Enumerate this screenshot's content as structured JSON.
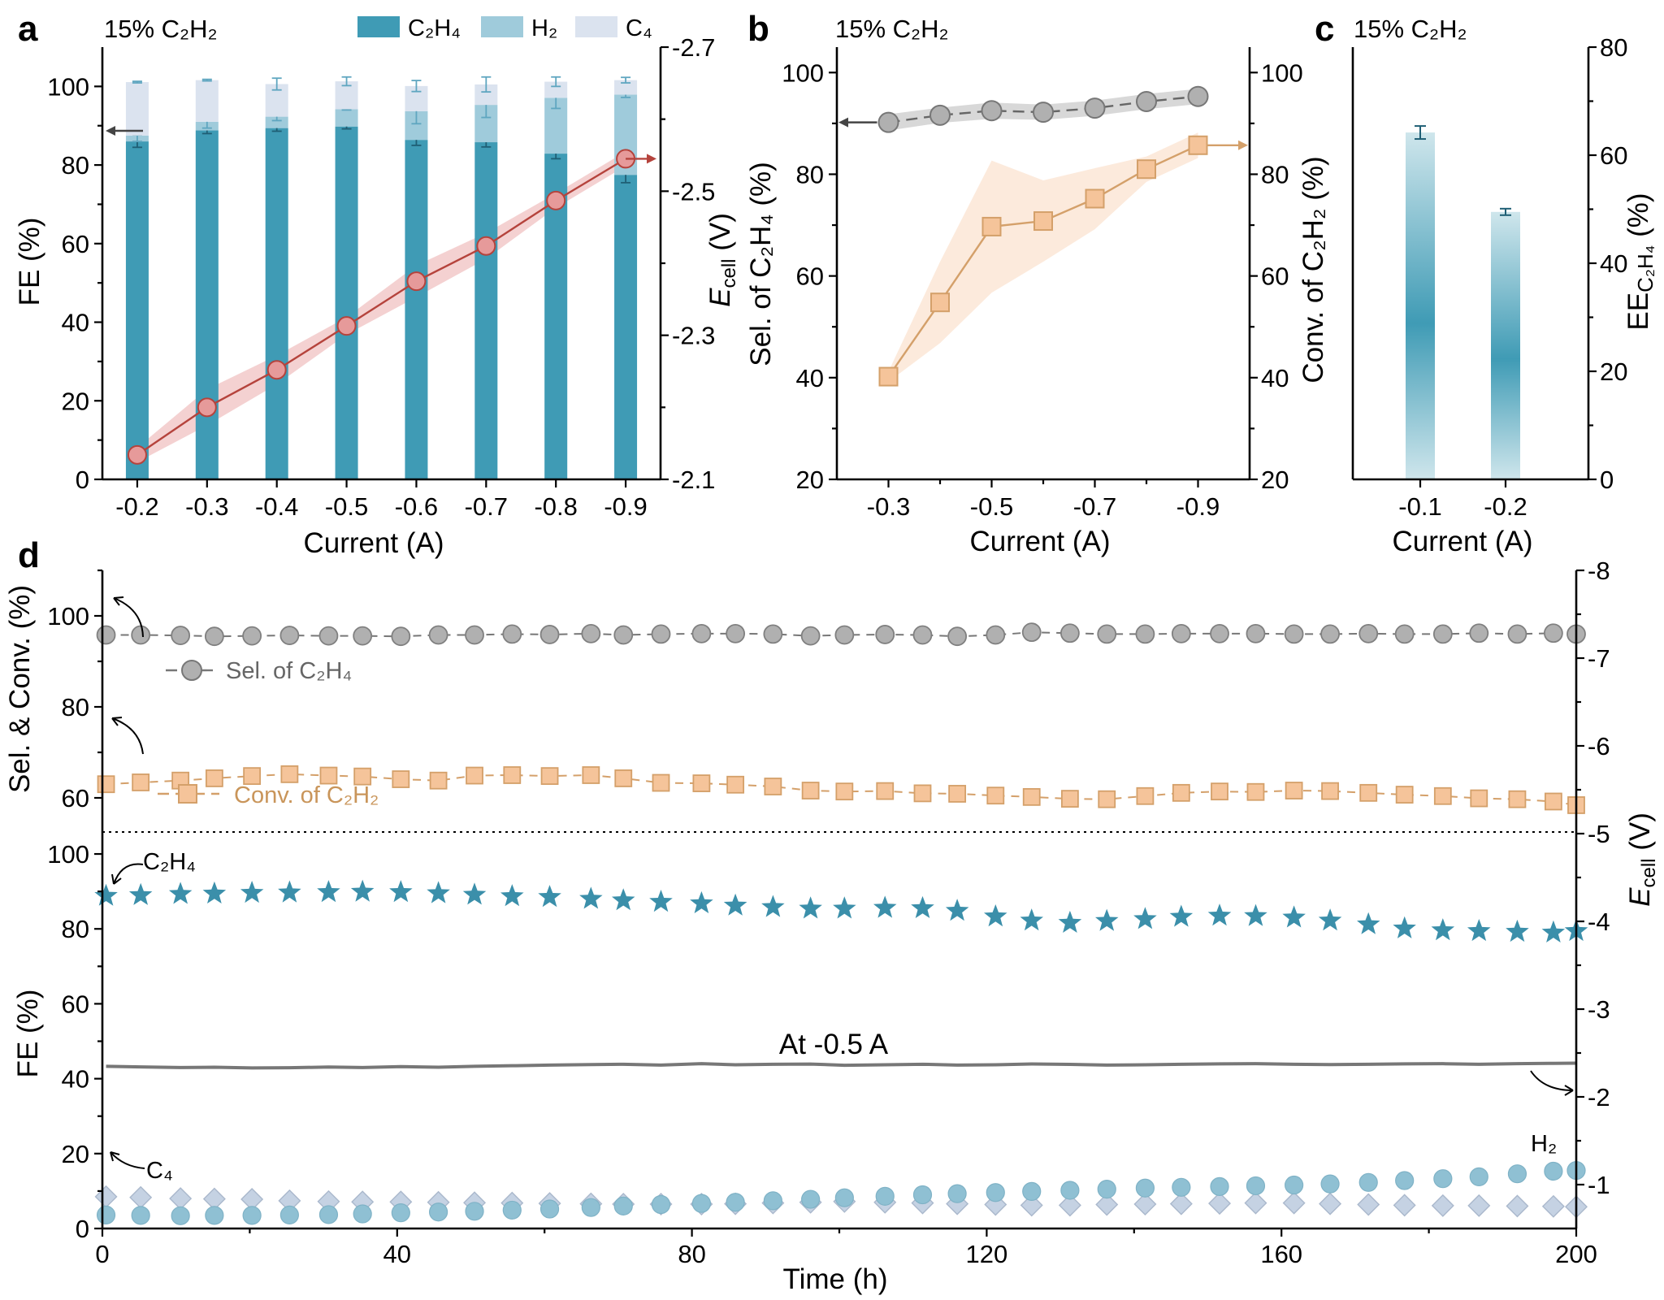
{
  "figure": {
    "panel_letters": [
      "a",
      "b",
      "c",
      "d"
    ],
    "condition_label": "15% C₂H₂"
  },
  "colors": {
    "c2h4": "#3f9bb5",
    "h2": "#9fcbdb",
    "c4": "#dbe3ef",
    "ecell_line": "#b5433c",
    "ecell_marker": "#e69a9a",
    "sel": "#b0b0b0",
    "conv": "#f5c49a",
    "conv_line": "#d4a06a",
    "ecell_trace": "#777777",
    "star": "#3b8faa",
    "h2_circle": "#8fc0d3",
    "c4_diamond": "#c5d2e3"
  },
  "chart_data": [
    {
      "id": "a",
      "type": "bar",
      "stacked": true,
      "header": "15% C₂H₂",
      "categories": [
        "-0.2",
        "-0.3",
        "-0.4",
        "-0.5",
        "-0.6",
        "-0.7",
        "-0.8",
        "-0.9"
      ],
      "xlabel": "Current (A)",
      "ylabel": "FE (%)",
      "y2label_main": "E",
      "y2label_sub": "cell",
      "y2label_unit": " (V)",
      "ylim": [
        0,
        110
      ],
      "yticks": [
        "0",
        "20",
        "40",
        "60",
        "80",
        "100"
      ],
      "y2lim": [
        -2.1,
        -2.7
      ],
      "y2ticks": [
        "-2.1",
        "-2.3",
        "-2.5",
        "-2.7"
      ],
      "legend": [
        "C₂H₄",
        "H₂",
        "C₄"
      ],
      "legend_position": "top",
      "series": [
        {
          "name": "C₂H₄",
          "values": [
            86,
            88.8,
            89.4,
            89.8,
            86.4,
            85.8,
            82.9,
            77.5
          ],
          "errors": [
            1.5,
            0.8,
            0.8,
            0.6,
            1.4,
            1.2,
            1.3,
            2.0
          ]
        },
        {
          "name": "H₂",
          "values": [
            1.5,
            2.2,
            2.9,
            4.4,
            7.3,
            9.5,
            14.2,
            20.4
          ],
          "errors": [
            1.5,
            1.6,
            1.0,
            0.2,
            3.2,
            3.2,
            2.7,
            0.7
          ]
        },
        {
          "name": "C₄",
          "values": [
            13.6,
            10.6,
            8.3,
            7.1,
            6.4,
            5.2,
            4.1,
            3.7
          ],
          "errors": [
            0.2,
            0.2,
            1.5,
            1.1,
            1.4,
            1.9,
            1.2,
            0.7
          ]
        }
      ],
      "ecell": [
        -2.134,
        -2.2,
        -2.252,
        -2.313,
        -2.375,
        -2.424,
        -2.487,
        -2.545
      ],
      "ecell_band": [
        0.01,
        0.025,
        0.02,
        0.012,
        0.022,
        0.018,
        0.01,
        0.01
      ],
      "grid": false
    },
    {
      "id": "b",
      "type": "line",
      "header": "15% C₂H₂",
      "x": [
        -0.3,
        -0.4,
        -0.5,
        -0.6,
        -0.7,
        -0.8,
        -0.9
      ],
      "xticks": [
        "-0.3",
        "-0.5",
        "-0.7",
        "-0.9"
      ],
      "xlabel": "Current (A)",
      "ylabel": "Sel. of C₂H₄ (%)",
      "y2label": "Conv. of C₂H₂ (%)",
      "ylim": [
        20,
        105
      ],
      "yticks": [
        "20",
        "40",
        "60",
        "80",
        "100"
      ],
      "y2ticks": [
        "20",
        "40",
        "60",
        "80",
        "100"
      ],
      "series": [
        {
          "name": "Sel. of C₂H₄",
          "axis": "left",
          "values": [
            90.2,
            91.6,
            92.5,
            92.2,
            93.0,
            94.3,
            95.3
          ],
          "band": [
            1.6,
            1.5,
            1.6,
            1.5,
            1.5,
            1.5,
            1.5
          ]
        },
        {
          "name": "Conv. of C₂H₂",
          "axis": "right",
          "values": [
            40.2,
            54.8,
            69.7,
            70.8,
            75.2,
            81.0,
            85.7
          ],
          "band": [
            1.0,
            8.0,
            13.0,
            8.0,
            6.0,
            2.5,
            2.5
          ]
        }
      ],
      "grid": false
    },
    {
      "id": "c",
      "type": "bar",
      "header": "15% C₂H₂",
      "categories": [
        "-0.1",
        "-0.2"
      ],
      "xlabel": "Current (A)",
      "ylabel_main": "EE",
      "ylabel_sub": "C₂H₄",
      "ylabel_unit": " (%)",
      "ylim": [
        0,
        80
      ],
      "yticks": [
        "0",
        "20",
        "40",
        "60",
        "80"
      ],
      "values": [
        64.2,
        49.5
      ],
      "errors": [
        1.2,
        0.6
      ],
      "grid": false
    },
    {
      "id": "d",
      "type": "scatter",
      "xlabel": "Time (h)",
      "xlim": [
        0,
        200
      ],
      "xticks": [
        "0",
        "40",
        "80",
        "120",
        "160",
        "200"
      ],
      "top_ylabel": "Sel. & Conv. (%)",
      "top_ylim": [
        52.5,
        110
      ],
      "top_yticks": [
        "60",
        "80",
        "100"
      ],
      "bottom_ylabel": "FE (%)",
      "bottom_ylim": [
        0,
        105
      ],
      "bottom_yticks": [
        "0",
        "20",
        "40",
        "60",
        "80",
        "100"
      ],
      "y2label_main": "E",
      "y2label_sub": "cell",
      "y2label_unit": " (V)",
      "y2lim": [
        -0.5,
        -8
      ],
      "y2ticks": [
        "-1",
        "-2",
        "-3",
        "-4",
        "-5",
        "-6",
        "-7",
        "-8"
      ],
      "x": [
        0.5,
        5.2,
        10.6,
        15.2,
        20.3,
        25.4,
        30.7,
        35.3,
        40.5,
        45.6,
        50.5,
        55.6,
        60.7,
        66.3,
        70.7,
        75.8,
        81.3,
        85.9,
        91.0,
        96.1,
        100.7,
        106.2,
        111.3,
        116.0,
        121.2,
        126.1,
        131.3,
        136.3,
        141.5,
        146.4,
        151.6,
        156.5,
        161.7,
        166.6,
        171.8,
        176.7,
        181.9,
        186.8,
        192.0,
        196.9,
        200.0
      ],
      "series": [
        {
          "name": "Sel. of C₂H₄",
          "panel": "top",
          "values": [
            95.8,
            95.8,
            95.7,
            95.5,
            95.6,
            95.7,
            95.6,
            95.6,
            95.5,
            95.8,
            95.8,
            96.0,
            95.9,
            96.1,
            95.8,
            96.0,
            96.1,
            96.1,
            96.0,
            95.6,
            95.8,
            95.9,
            95.8,
            95.5,
            95.8,
            96.4,
            96.2,
            96.0,
            96.0,
            96.1,
            96.1,
            96.1,
            96.0,
            96.0,
            96.1,
            96.0,
            96.0,
            96.2,
            96.0,
            96.2,
            96.0
          ]
        },
        {
          "name": "Conv. of C₂H₂",
          "panel": "top",
          "values": [
            63.0,
            63.4,
            63.8,
            64.3,
            64.8,
            65.2,
            64.9,
            64.7,
            64.1,
            63.8,
            64.9,
            65.0,
            64.8,
            65.0,
            64.3,
            63.3,
            63.2,
            62.9,
            62.5,
            61.6,
            61.4,
            61.5,
            61.0,
            60.9,
            60.5,
            60.2,
            59.8,
            59.7,
            60.4,
            61.1,
            61.4,
            61.3,
            61.6,
            61.5,
            61.1,
            60.7,
            60.4,
            59.9,
            59.7,
            59.2,
            58.4
          ]
        },
        {
          "name": "C₂H₄",
          "panel": "bottom",
          "values": [
            88.8,
            89.0,
            89.3,
            89.4,
            89.6,
            89.7,
            89.8,
            89.9,
            89.8,
            89.5,
            89.1,
            88.7,
            88.5,
            88.0,
            87.6,
            87.2,
            86.8,
            86.2,
            85.8,
            85.4,
            85.4,
            85.6,
            85.5,
            84.8,
            83.3,
            82.2,
            81.6,
            82.1,
            82.6,
            83.2,
            83.5,
            83.4,
            83.0,
            82.2,
            81.2,
            80.1,
            79.6,
            79.4,
            79.2,
            79.0,
            79.4
          ]
        },
        {
          "name": "H₂",
          "panel": "bottom",
          "values": [
            3.6,
            3.5,
            3.4,
            3.5,
            3.5,
            3.6,
            3.7,
            3.9,
            4.2,
            4.4,
            4.6,
            4.9,
            5.2,
            5.6,
            6.0,
            6.4,
            6.7,
            7.0,
            7.4,
            7.8,
            8.2,
            8.6,
            9.0,
            9.3,
            9.6,
            9.9,
            10.2,
            10.5,
            10.8,
            11.0,
            11.2,
            11.4,
            11.6,
            11.9,
            12.3,
            12.8,
            13.3,
            13.8,
            14.6,
            15.3,
            15.5
          ]
        },
        {
          "name": "C₄",
          "panel": "bottom",
          "values": [
            8.5,
            8.3,
            8.0,
            7.9,
            7.8,
            7.4,
            7.2,
            7.1,
            7.1,
            7.0,
            6.9,
            6.8,
            6.7,
            6.6,
            6.5,
            6.5,
            6.5,
            6.6,
            6.8,
            7.0,
            7.2,
            7.0,
            6.8,
            6.6,
            6.4,
            6.2,
            6.2,
            6.4,
            6.5,
            6.6,
            6.7,
            6.8,
            6.8,
            6.6,
            6.4,
            6.2,
            6.1,
            6.1,
            6.0,
            5.9,
            5.8
          ]
        },
        {
          "name": "E_cell",
          "panel": "right-axis",
          "values": [
            -2.348,
            -2.341,
            -2.335,
            -2.338,
            -2.33,
            -2.332,
            -2.34,
            -2.335,
            -2.345,
            -2.338,
            -2.348,
            -2.355,
            -2.362,
            -2.368,
            -2.372,
            -2.362,
            -2.378,
            -2.366,
            -2.372,
            -2.374,
            -2.36,
            -2.366,
            -2.372,
            -2.362,
            -2.366,
            -2.375,
            -2.37,
            -2.362,
            -2.366,
            -2.372,
            -2.376,
            -2.378,
            -2.372,
            -2.368,
            -2.372,
            -2.376,
            -2.378,
            -2.372,
            -2.378,
            -2.382,
            -2.384
          ]
        }
      ],
      "annotations": {
        "sel_legend": "Sel. of C₂H₄",
        "conv_legend": "Conv. of C₂H₂",
        "c2h4_label": "C₂H₄",
        "c4_label": "C₄",
        "h2_label": "H₂",
        "current_note": "At -0.5 A"
      },
      "grid": false
    }
  ]
}
